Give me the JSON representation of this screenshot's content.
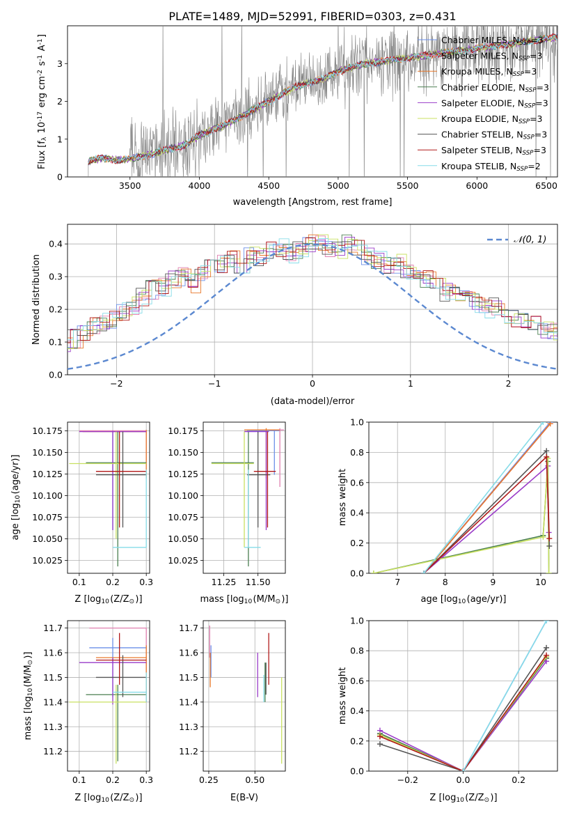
{
  "title": "PLATE=1489, MJD=52991, FIBERID=0303, z=0.431",
  "models": [
    {
      "name": "Chabrier MILES, N$_{SSP}$=3",
      "label": "Chabrier MILES, N",
      "sub": "SSP",
      "suffix": "=3",
      "color": "#6b8fe8"
    },
    {
      "name": "Salpeter MILES, N$_{SSP}$=3",
      "label": "Salpeter MILES, N",
      "sub": "SSP",
      "suffix": "=3",
      "color": "#e07fb0"
    },
    {
      "name": "Kroupa MILES, N$_{SSP}$=3",
      "label": "Kroupa MILES, N",
      "sub": "SSP",
      "suffix": "=3",
      "color": "#e8782a"
    },
    {
      "name": "Chabrier ELODIE, N$_{SSP}$=3",
      "label": "Chabrier ELODIE, N",
      "sub": "SSP",
      "suffix": "=3",
      "color": "#4a7f50"
    },
    {
      "name": "Salpeter ELODIE, N$_{SSP}$=3",
      "label": "Salpeter ELODIE, N",
      "sub": "SSP",
      "suffix": "=3",
      "color": "#9a3bc8"
    },
    {
      "name": "Kroupa ELODIE, N$_{SSP}$=3",
      "label": "Kroupa ELODIE, N",
      "sub": "SSP",
      "suffix": "=3",
      "color": "#c8e060"
    },
    {
      "name": "Chabrier STELIB, N$_{SSP}$=3",
      "label": "Chabrier STELIB, N",
      "sub": "SSP",
      "suffix": "=3",
      "color": "#555555"
    },
    {
      "name": "Salpeter STELIB, N$_{SSP}$=3",
      "label": "Salpeter STELIB, N",
      "sub": "SSP",
      "suffix": "=3",
      "color": "#b01818"
    },
    {
      "name": "Kroupa STELIB, N$_{SSP}$=2",
      "label": "Kroupa STELIB, N",
      "sub": "SSP",
      "suffix": "=2",
      "color": "#86dce8"
    }
  ],
  "chart_data": [
    {
      "id": "spectrum",
      "type": "line",
      "xlabel": "wavelength [Angstrom, rest frame]",
      "ylabel": "Flux [f$_\\lambda$ 10$^{-17}$ erg cm$^{-2}$ s$^{-1}$ A$^{-1}$]",
      "xlim": [
        3050,
        6580
      ],
      "ylim": [
        0,
        4.0
      ],
      "xticks": [
        3500,
        4000,
        4500,
        5000,
        5500,
        6000,
        6500
      ],
      "yticks": [
        0,
        1,
        2,
        3
      ],
      "legend": "top-right",
      "data_color": "#808080",
      "data_x_range": [
        3200,
        6580
      ],
      "model_x": [
        3200,
        3300,
        3400,
        3500,
        3600,
        3700,
        3800,
        3900,
        4000,
        4100,
        4200,
        4300,
        4400,
        4500,
        4600,
        4700,
        4800,
        4900,
        5000,
        5200,
        5400,
        5600,
        5800,
        6000,
        6200,
        6400,
        6580
      ],
      "model_y": [
        0.42,
        0.5,
        0.45,
        0.48,
        0.55,
        0.65,
        0.75,
        0.85,
        1.1,
        1.25,
        1.4,
        1.6,
        1.8,
        2.0,
        2.2,
        2.4,
        2.5,
        2.6,
        2.8,
        3.0,
        3.1,
        3.2,
        3.3,
        3.4,
        3.5,
        3.6,
        3.7
      ]
    },
    {
      "id": "residuals",
      "type": "histogram",
      "xlabel": "(data-model)/error",
      "ylabel": "Normed distribution",
      "xlim": [
        -2.5,
        2.5
      ],
      "ylim": [
        0,
        0.46
      ],
      "xticks": [
        -2,
        -1,
        0,
        1,
        2
      ],
      "yticks": [
        0.0,
        0.1,
        0.2,
        0.3,
        0.4
      ],
      "legend": "top-right",
      "reference_curve": {
        "name": "$\\mathcal{N}(0,1)$",
        "label": "𝒩(0, 1)",
        "color": "#5b88d0",
        "mean": 0,
        "sigma": 1
      },
      "bin_width": 0.1,
      "base_values": [
        0.02,
        0.025,
        0.03,
        0.04,
        0.05,
        0.045,
        0.06,
        0.07,
        0.08,
        0.1,
        0.11,
        0.13,
        0.15,
        0.16,
        0.17,
        0.19,
        0.21,
        0.24,
        0.26,
        0.27,
        0.29,
        0.3,
        0.28,
        0.31,
        0.33,
        0.34,
        0.35,
        0.33,
        0.37,
        0.36,
        0.38,
        0.39,
        0.37,
        0.38,
        0.4,
        0.41,
        0.39,
        0.38,
        0.4,
        0.39,
        0.36,
        0.35,
        0.33,
        0.34,
        0.31,
        0.3,
        0.29,
        0.27,
        0.25,
        0.24,
        0.23,
        0.22,
        0.2,
        0.21,
        0.18,
        0.17,
        0.16,
        0.15,
        0.14,
        0.13,
        0.12,
        0.12,
        0.11,
        0.1,
        0.09,
        0.09,
        0.08,
        0.07,
        0.06,
        0.05
      ]
    },
    {
      "id": "age-vs-z",
      "type": "errorbar",
      "xlabel": "Z [log$_{10}$(Z/Z$_\\odot$)]",
      "ylabel": "age  [log$_{10}$($age/yr$)]",
      "xlim": [
        0.065,
        0.31
      ],
      "ylim": [
        10.01,
        10.185
      ],
      "xticks": [
        0.1,
        0.2,
        0.3
      ],
      "yticks": [
        10.025,
        10.05,
        10.075,
        10.1,
        10.125,
        10.15,
        10.175
      ],
      "points": [
        {
          "x": 0.2,
          "y": 10.174,
          "xerr": [
            0.2,
            0.3
          ],
          "yerr": [
            10.06,
            10.175
          ]
        },
        {
          "x": 0.3,
          "y": 10.175,
          "xerr": [
            0.1,
            0.3
          ],
          "yerr": [
            10.14,
            10.176
          ]
        },
        {
          "x": 0.3,
          "y": 10.174,
          "xerr": [
            0.11,
            0.3
          ],
          "yerr": [
            10.12,
            10.176
          ]
        },
        {
          "x": 0.215,
          "y": 10.138,
          "xerr": [
            0.12,
            0.3
          ],
          "yerr": [
            10.018,
            10.174
          ]
        },
        {
          "x": 0.2,
          "y": 10.174,
          "xerr": [
            0.1,
            0.3
          ],
          "yerr": [
            10.06,
            10.175
          ]
        },
        {
          "x": 0.21,
          "y": 10.137,
          "xerr": [
            0.07,
            0.3
          ],
          "yerr": [
            10.05,
            10.174
          ]
        },
        {
          "x": 0.23,
          "y": 10.124,
          "xerr": [
            0.15,
            0.3
          ],
          "yerr": [
            10.063,
            10.174
          ]
        },
        {
          "x": 0.22,
          "y": 10.128,
          "xerr": [
            0.15,
            0.3
          ],
          "yerr": [
            10.063,
            10.174
          ]
        },
        {
          "x": 0.3,
          "y": 10.04,
          "xerr": [
            0.2,
            0.3
          ],
          "yerr": [
            10.04,
            10.13
          ]
        }
      ]
    },
    {
      "id": "age-vs-mass",
      "type": "errorbar",
      "xlabel": "mass [log$_{10}$($M/M_\\odot$)]",
      "ylabel": "",
      "xlim": [
        11.1,
        11.7
      ],
      "ylim": [
        10.01,
        10.185
      ],
      "xticks": [
        11.25,
        11.5
      ],
      "yticks": [
        10.025,
        10.05,
        10.075,
        10.1,
        10.125,
        10.15,
        10.175
      ],
      "points": [
        {
          "x": 11.62,
          "y": 10.175,
          "xerr": [
            11.42,
            11.66
          ],
          "yerr": [
            10.124,
            10.176
          ]
        },
        {
          "x": 11.66,
          "y": 10.176,
          "xerr": [
            11.45,
            11.69
          ],
          "yerr": [
            10.11,
            10.178
          ]
        },
        {
          "x": 11.56,
          "y": 10.176,
          "xerr": [
            11.4,
            11.66
          ],
          "yerr": [
            10.12,
            10.178
          ]
        },
        {
          "x": 11.43,
          "y": 10.138,
          "xerr": [
            11.16,
            11.47
          ],
          "yerr": [
            10.018,
            10.174
          ]
        },
        {
          "x": 11.56,
          "y": 10.174,
          "xerr": [
            11.4,
            11.58
          ],
          "yerr": [
            10.06,
            10.175
          ]
        },
        {
          "x": 11.4,
          "y": 10.137,
          "xerr": [
            11.16,
            11.47
          ],
          "yerr": [
            10.04,
            10.174
          ]
        },
        {
          "x": 11.5,
          "y": 10.124,
          "xerr": [
            11.42,
            11.59
          ],
          "yerr": [
            10.063,
            10.174
          ]
        },
        {
          "x": 11.57,
          "y": 10.128,
          "xerr": [
            11.47,
            11.63
          ],
          "yerr": [
            10.063,
            10.174
          ]
        },
        {
          "x": 11.43,
          "y": 10.04,
          "xerr": [
            11.4,
            11.52
          ],
          "yerr": [
            10.04,
            10.13
          ]
        }
      ]
    },
    {
      "id": "weight-vs-age",
      "type": "line",
      "xlabel": "age  [log$_{10}$($age/yr$)]",
      "ylabel": "mass weight",
      "xlim": [
        6.4,
        10.35
      ],
      "ylim": [
        0,
        1.0
      ],
      "xticks": [
        7,
        8,
        9,
        10
      ],
      "yticks": [
        0.0,
        0.2,
        0.4,
        0.6,
        0.8,
        1.0
      ],
      "series": [
        {
          "x": [
            7.55,
            10.2
          ],
          "y": [
            0.0,
            1.0
          ]
        },
        {
          "x": [
            7.55,
            10.2
          ],
          "y": [
            0.0,
            0.99
          ]
        },
        {
          "x": [
            7.55,
            10.2
          ],
          "y": [
            0.0,
            0.99
          ]
        },
        {
          "x": [
            6.5,
            10.05,
            10.15,
            10.17
          ],
          "y": [
            0.0,
            0.25,
            0.74,
            0.0
          ]
        },
        {
          "x": [
            7.55,
            10.15,
            10.17
          ],
          "y": [
            0.0,
            0.71,
            0.27
          ]
        },
        {
          "x": [
            6.5,
            10.05,
            10.15,
            10.17
          ],
          "y": [
            0.0,
            0.24,
            0.76,
            0.0
          ]
        },
        {
          "x": [
            7.55,
            10.12,
            10.18
          ],
          "y": [
            0.0,
            0.81,
            0.18
          ]
        },
        {
          "x": [
            7.55,
            10.12,
            10.18
          ],
          "y": [
            0.0,
            0.77,
            0.23
          ]
        },
        {
          "x": [
            7.55,
            10.05
          ],
          "y": [
            0.0,
            1.0
          ]
        }
      ]
    },
    {
      "id": "mass-vs-z",
      "type": "errorbar",
      "xlabel": "Z [log$_{10}$(Z/Z$_\\odot$)]",
      "ylabel": "mass [log$_{10}$($M/M_\\odot$)]",
      "xlim": [
        0.065,
        0.31
      ],
      "ylim": [
        11.12,
        11.73
      ],
      "xticks": [
        0.1,
        0.2,
        0.3
      ],
      "yticks": [
        11.2,
        11.3,
        11.4,
        11.5,
        11.6,
        11.7
      ],
      "points": [
        {
          "x": 0.2,
          "y": 11.62,
          "xerr": [
            0.13,
            0.3
          ],
          "yerr": [
            11.42,
            11.66
          ]
        },
        {
          "x": 0.3,
          "y": 11.7,
          "xerr": [
            0.13,
            0.3
          ],
          "yerr": [
            11.45,
            11.7
          ]
        },
        {
          "x": 0.3,
          "y": 11.58,
          "xerr": [
            0.15,
            0.3
          ],
          "yerr": [
            11.4,
            11.63
          ]
        },
        {
          "x": 0.215,
          "y": 11.43,
          "xerr": [
            0.12,
            0.3
          ],
          "yerr": [
            11.16,
            11.47
          ]
        },
        {
          "x": 0.2,
          "y": 11.56,
          "xerr": [
            0.1,
            0.3
          ],
          "yerr": [
            11.39,
            11.58
          ]
        },
        {
          "x": 0.21,
          "y": 11.4,
          "xerr": [
            0.07,
            0.3
          ],
          "yerr": [
            11.15,
            11.47
          ]
        },
        {
          "x": 0.23,
          "y": 11.5,
          "xerr": [
            0.15,
            0.3
          ],
          "yerr": [
            11.42,
            11.59
          ]
        },
        {
          "x": 0.22,
          "y": 11.57,
          "xerr": [
            0.15,
            0.3
          ],
          "yerr": [
            11.47,
            11.68
          ]
        },
        {
          "x": 0.3,
          "y": 11.44,
          "xerr": [
            0.2,
            0.3
          ],
          "yerr": [
            11.4,
            11.52
          ]
        }
      ]
    },
    {
      "id": "mass-vs-ebv",
      "type": "errorbar",
      "xlabel": "E(B-V)",
      "ylabel": "",
      "xlim": [
        0.22,
        0.665
      ],
      "ylim": [
        11.12,
        11.73
      ],
      "xticks": [
        0.25,
        0.5
      ],
      "yticks": [
        11.2,
        11.3,
        11.4,
        11.5,
        11.6,
        11.7
      ],
      "points": [
        {
          "x": 0.262,
          "y": 11.62,
          "xerr": [
            0.262,
            0.262
          ],
          "yerr": [
            11.5,
            11.63
          ]
        },
        {
          "x": 0.255,
          "y": 11.7,
          "xerr": [
            0.255,
            0.255
          ],
          "yerr": [
            11.58,
            11.71
          ]
        },
        {
          "x": 0.258,
          "y": 11.58,
          "xerr": [
            0.258,
            0.258
          ],
          "yerr": [
            11.46,
            11.6
          ]
        },
        {
          "x": 0.555,
          "y": 11.43,
          "xerr": [
            0.555,
            0.555
          ],
          "yerr": [
            11.4,
            11.56
          ]
        },
        {
          "x": 0.515,
          "y": 11.56,
          "xerr": [
            0.515,
            0.515
          ],
          "yerr": [
            11.42,
            11.6
          ]
        },
        {
          "x": 0.645,
          "y": 11.4,
          "xerr": [
            0.645,
            0.645
          ],
          "yerr": [
            11.15,
            11.5
          ]
        },
        {
          "x": 0.56,
          "y": 11.5,
          "xerr": [
            0.56,
            0.56
          ],
          "yerr": [
            11.43,
            11.56
          ]
        },
        {
          "x": 0.575,
          "y": 11.57,
          "xerr": [
            0.575,
            0.575
          ],
          "yerr": [
            11.47,
            11.68
          ]
        },
        {
          "x": 0.548,
          "y": 11.45,
          "xerr": [
            0.548,
            0.548
          ],
          "yerr": [
            11.4,
            11.51
          ]
        }
      ]
    },
    {
      "id": "weight-vs-z",
      "type": "line",
      "xlabel": "Z [log$_{10}$(Z/Z$_\\odot$)]",
      "ylabel": "mass weight",
      "xlim": [
        -0.34,
        0.34
      ],
      "ylim": [
        0,
        1.0
      ],
      "xticks": [
        -0.2,
        0.0,
        0.2
      ],
      "yticks": [
        0.0,
        0.2,
        0.4,
        0.6,
        0.8,
        1.0
      ],
      "series": [
        {
          "x": [
            0.0,
            0.3
          ],
          "y": [
            0.0,
            1.0
          ]
        },
        {
          "x": [
            -0.3,
            0.0,
            0.3
          ],
          "y": [
            0.25,
            0.0,
            0.75
          ]
        },
        {
          "x": [
            -0.3,
            0.0,
            0.3
          ],
          "y": [
            0.24,
            0.0,
            0.76
          ]
        },
        {
          "x": [
            -0.3,
            0.0,
            0.3
          ],
          "y": [
            0.25,
            0.0,
            0.75
          ]
        },
        {
          "x": [
            -0.3,
            0.0,
            0.3
          ],
          "y": [
            0.27,
            0.0,
            0.73
          ]
        },
        {
          "x": [
            -0.3,
            0.0,
            0.3
          ],
          "y": [
            0.24,
            0.0,
            0.76
          ]
        },
        {
          "x": [
            -0.3,
            0.0,
            0.3
          ],
          "y": [
            0.18,
            0.0,
            0.82
          ]
        },
        {
          "x": [
            -0.3,
            0.0,
            0.3
          ],
          "y": [
            0.23,
            0.0,
            0.77
          ]
        },
        {
          "x": [
            0.0,
            0.3
          ],
          "y": [
            0.0,
            1.0
          ]
        }
      ]
    }
  ]
}
